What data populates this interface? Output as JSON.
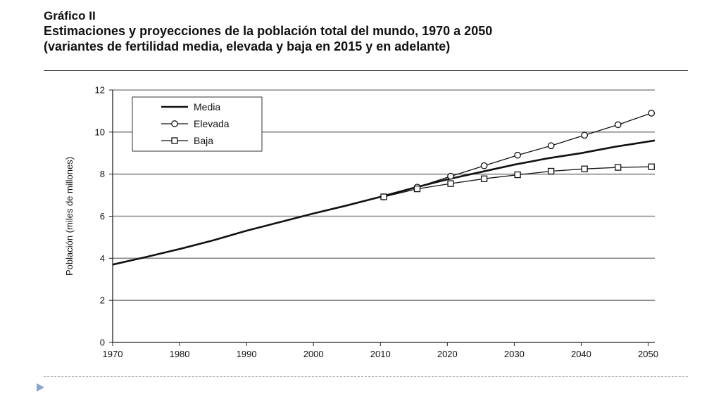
{
  "header": {
    "label": "Gráfico II",
    "title_line1": "Estimaciones y proyecciones de la población total del mundo, 1970 a 2050",
    "title_line2": "(variantes de fertilidad media, elevada y baja en 2015 y en adelante)"
  },
  "chart_data": {
    "type": "line",
    "title": "Estimaciones y proyecciones de la población total del mundo, 1970 a 2050",
    "subtitle": "(variantes de fertilidad media, elevada y baja en 2015 y en adelante)",
    "xlabel": "",
    "ylabel": "Población (miles de millones)",
    "xlim": [
      1970,
      2051
    ],
    "ylim": [
      0,
      12
    ],
    "x_ticks": [
      "1970",
      "1980",
      "1990",
      "2000",
      "2010",
      "2020",
      "2030",
      "2040",
      "2050"
    ],
    "y_ticks": [
      "0",
      "2",
      "4",
      "6",
      "8",
      "10",
      "12"
    ],
    "grid": "horizontal",
    "legend_position": "top-left",
    "series": [
      {
        "name": "Media",
        "marker": "none",
        "x": [
          1970,
          1975,
          1980,
          1985,
          1990,
          1995,
          2000,
          2005,
          2010,
          2015,
          2020,
          2025,
          2030,
          2035,
          2040,
          2045,
          2051
        ],
        "y": [
          3.7,
          4.06,
          4.44,
          4.85,
          5.31,
          5.72,
          6.13,
          6.51,
          6.92,
          7.35,
          7.75,
          8.1,
          8.45,
          8.75,
          9.0,
          9.3,
          9.6
        ]
      },
      {
        "name": "Elevada",
        "marker": "circle",
        "x": [
          2010.5,
          2015.5,
          2020.5,
          2025.5,
          2030.5,
          2035.5,
          2040.5,
          2045.5,
          2050.5
        ],
        "y": [
          6.92,
          7.38,
          7.9,
          8.4,
          8.9,
          9.35,
          9.85,
          10.35,
          10.9
        ]
      },
      {
        "name": "Baja",
        "marker": "square",
        "x": [
          2010.5,
          2015.5,
          2020.5,
          2025.5,
          2030.5,
          2035.5,
          2040.5,
          2045.5,
          2050.5
        ],
        "y": [
          6.92,
          7.3,
          7.55,
          7.78,
          7.97,
          8.14,
          8.25,
          8.32,
          8.35
        ]
      }
    ]
  }
}
